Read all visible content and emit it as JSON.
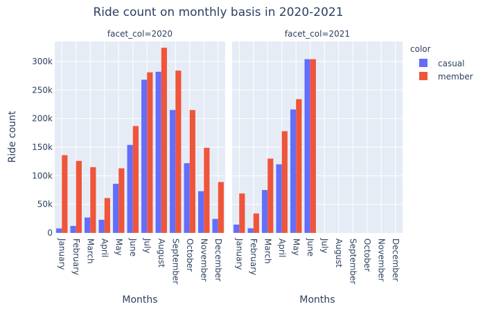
{
  "chart_data": {
    "type": "bar",
    "title": "Ride count on monthly basis in 2020-2021",
    "ylabel": "Ride count",
    "xlabel": "Months",
    "ylim": [
      0,
      335000
    ],
    "yticks": [
      0,
      50000,
      100000,
      150000,
      200000,
      250000,
      300000
    ],
    "ytick_labels": [
      "0",
      "50k",
      "100k",
      "150k",
      "200k",
      "250k",
      "300k"
    ],
    "categories": [
      "January",
      "February",
      "March",
      "April",
      "May",
      "June",
      "July",
      "August",
      "September",
      "October",
      "November",
      "December"
    ],
    "legend": {
      "title": "color",
      "placement": "right"
    },
    "colors": {
      "casual": "#636efa",
      "member": "#ef553b",
      "plot_bg": "#e5ecf6",
      "grid": "#ffffff"
    },
    "facets": [
      {
        "label": "facet_col=2020",
        "series": [
          {
            "name": "casual",
            "values": [
              7800,
              12200,
              27000,
              23000,
              86000,
              154000,
              268000,
              282000,
              215000,
              122000,
              73000,
              24500
            ]
          },
          {
            "name": "member",
            "values": [
              136000,
              126000,
              115000,
              61000,
              113000,
              187000,
              281000,
              324000,
              284000,
              215000,
              149000,
              89000
            ]
          }
        ]
      },
      {
        "label": "facet_col=2021",
        "series": [
          {
            "name": "casual",
            "values": [
              14500,
              8000,
              75000,
              120000,
              216000,
              304000,
              null,
              null,
              null,
              null,
              null,
              null
            ]
          },
          {
            "name": "member",
            "values": [
              69000,
              34000,
              130000,
              178000,
              234000,
              304000,
              null,
              null,
              null,
              null,
              null,
              null
            ]
          }
        ]
      }
    ]
  }
}
